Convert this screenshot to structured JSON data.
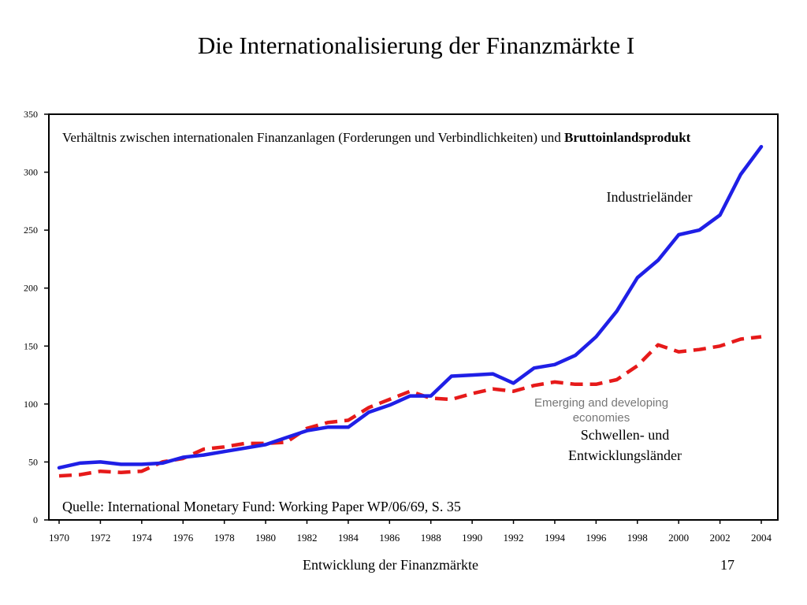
{
  "slide": {
    "title": "Die Internationalisierung der Finanzmärkte I",
    "footer_left": "Entwicklung der Finanzmärkte",
    "page_number": "17"
  },
  "chart_data": {
    "type": "line",
    "description_normal": "Verhältnis zwischen internationalen Finanzanlagen (Forderungen und Verbindlichkeiten) und ",
    "description_bold": "Bruttoinlandsprodukt",
    "source": "Quelle: International Monetary Fund: Working Paper WP/06/69, S. 35",
    "annotations": {
      "emerging_en_line1": "Emerging and developing",
      "emerging_en_line2": "economies",
      "emerging_de_line1": "Schwellen- und",
      "emerging_de_line2": "Entwicklungsländer",
      "industrial_de": "Industrieländer"
    },
    "xlim": [
      1970,
      2004
    ],
    "ylim": [
      0,
      350
    ],
    "x_ticks": [
      1970,
      1972,
      1974,
      1976,
      1978,
      1980,
      1982,
      1984,
      1986,
      1988,
      1990,
      1992,
      1994,
      1996,
      1998,
      2000,
      2002,
      2004
    ],
    "y_ticks": [
      0,
      50,
      100,
      150,
      200,
      250,
      300,
      350
    ],
    "x": [
      1970,
      1971,
      1972,
      1973,
      1974,
      1975,
      1976,
      1977,
      1978,
      1979,
      1980,
      1981,
      1982,
      1983,
      1984,
      1985,
      1986,
      1987,
      1988,
      1989,
      1990,
      1991,
      1992,
      1993,
      1994,
      1995,
      1996,
      1997,
      1998,
      1999,
      2000,
      2001,
      2002,
      2003,
      2004
    ],
    "series": [
      {
        "name": "Industrieländer",
        "color": "#1f1fe6",
        "style": "solid",
        "values": [
          45,
          49,
          50,
          48,
          48,
          49,
          54,
          56,
          59,
          62,
          65,
          71,
          77,
          80,
          80,
          93,
          99,
          107,
          107,
          124,
          125,
          126,
          118,
          131,
          134,
          142,
          158,
          180,
          209,
          224,
          246,
          250,
          263,
          298,
          322
        ]
      },
      {
        "name": "Schwellen- und Entwicklungsländer",
        "color": "#e61a1a",
        "style": "dashed",
        "values": [
          38,
          39,
          42,
          41,
          42,
          50,
          53,
          61,
          63,
          66,
          66,
          67,
          79,
          84,
          86,
          97,
          104,
          111,
          105,
          104,
          109,
          113,
          111,
          116,
          119,
          117,
          117,
          121,
          133,
          151,
          145,
          147,
          150,
          156,
          158
        ]
      }
    ]
  }
}
